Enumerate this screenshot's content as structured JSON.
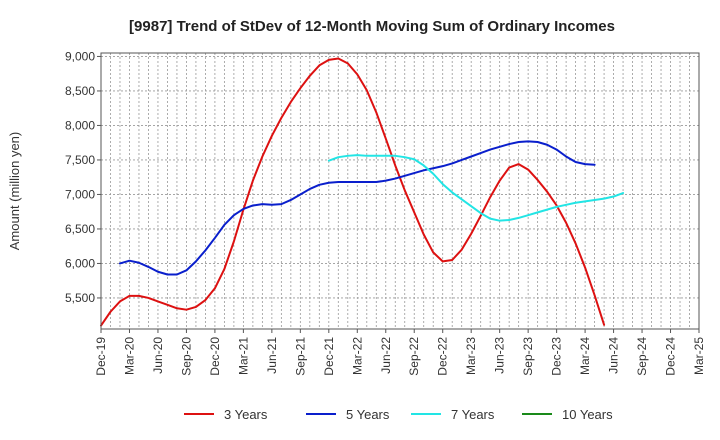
{
  "chart_data": {
    "type": "line",
    "title": "[9987]  Trend of StDev of 12-Month Moving Sum of Ordinary Incomes",
    "xlabel": "",
    "ylabel": "Amount (million yen)",
    "ylim": [
      5050,
      9050
    ],
    "yticks": [
      5500,
      6000,
      6500,
      7000,
      7500,
      8000,
      8500,
      9000
    ],
    "ytick_labels": [
      "5,500",
      "6,000",
      "6,500",
      "7,000",
      "7,500",
      "8,000",
      "8,500",
      "9,000"
    ],
    "x_categories": [
      "Dec-19",
      "Mar-20",
      "Jun-20",
      "Sep-20",
      "Dec-20",
      "Mar-21",
      "Jun-21",
      "Sep-21",
      "Dec-21",
      "Mar-22",
      "Jun-22",
      "Sep-22",
      "Dec-22",
      "Mar-23",
      "Jun-23",
      "Sep-23",
      "Dec-23",
      "Mar-24",
      "Jun-24",
      "Sep-24",
      "Dec-24",
      "Mar-25"
    ],
    "series": [
      {
        "name": "3 Years",
        "color": "#dd1111",
        "start_index": 0,
        "values": [
          5100,
          5300,
          5450,
          5530,
          5530,
          5500,
          5450,
          5400,
          5350,
          5330,
          5370,
          5470,
          5640,
          5920,
          6320,
          6780,
          7200,
          7550,
          7850,
          8110,
          8340,
          8540,
          8720,
          8870,
          8950,
          8970,
          8900,
          8740,
          8510,
          8190,
          7810,
          7420,
          7060,
          6740,
          6420,
          6160,
          6030,
          6050,
          6200,
          6430,
          6690,
          6960,
          7200,
          7390,
          7440,
          7360,
          7210,
          7040,
          6840,
          6590,
          6290,
          5940,
          5540,
          5110
        ]
      },
      {
        "name": "5 Years",
        "color": "#0a1fcc",
        "start_index": 2,
        "values": [
          6000,
          6040,
          6010,
          5950,
          5880,
          5840,
          5840,
          5900,
          6030,
          6190,
          6370,
          6560,
          6700,
          6790,
          6840,
          6860,
          6850,
          6860,
          6920,
          7000,
          7080,
          7140,
          7170,
          7180,
          7180,
          7180,
          7180,
          7180,
          7200,
          7230,
          7270,
          7310,
          7350,
          7380,
          7410,
          7450,
          7500,
          7550,
          7600,
          7650,
          7690,
          7730,
          7760,
          7770,
          7760,
          7720,
          7650,
          7550,
          7470,
          7440,
          7430
        ]
      },
      {
        "name": "7 Years",
        "color": "#22e5e5",
        "start_index": 24,
        "values": [
          7490,
          7540,
          7560,
          7570,
          7560,
          7560,
          7560,
          7560,
          7540,
          7510,
          7420,
          7300,
          7150,
          7030,
          6930,
          6830,
          6730,
          6650,
          6620,
          6630,
          6660,
          6700,
          6740,
          6780,
          6820,
          6850,
          6880,
          6900,
          6920,
          6940,
          6970,
          7020
        ]
      },
      {
        "name": "10 Years",
        "color": "#1a8a1a",
        "start_index": 0,
        "values": []
      }
    ]
  }
}
